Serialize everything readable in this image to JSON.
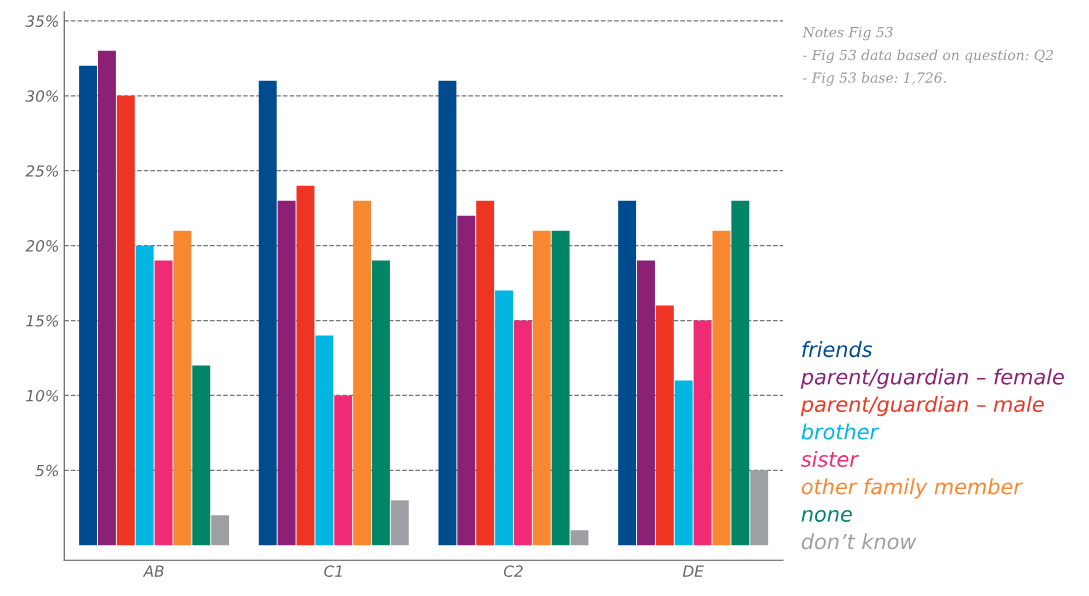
{
  "chart_data": {
    "type": "bar",
    "categories": [
      "AB",
      "C1",
      "C2",
      "DE"
    ],
    "series": [
      {
        "name": "friends",
        "color": "#004b8d",
        "values": [
          32,
          31,
          31,
          23
        ]
      },
      {
        "name": "parent/guardian – female",
        "color": "#8b2074",
        "values": [
          33,
          23,
          22,
          19
        ]
      },
      {
        "name": "parent/guardian – male",
        "color": "#ee3524",
        "values": [
          30,
          24,
          23,
          16
        ]
      },
      {
        "name": "brother",
        "color": "#00b5e2",
        "values": [
          20,
          14,
          17,
          11
        ]
      },
      {
        "name": "sister",
        "color": "#ee2b74",
        "values": [
          19,
          10,
          15,
          15
        ]
      },
      {
        "name": "other family member",
        "color": "#f7882f",
        "values": [
          21,
          23,
          21,
          21
        ]
      },
      {
        "name": "none",
        "color": "#008566",
        "values": [
          12,
          19,
          21,
          23
        ]
      },
      {
        "name": "don’t know",
        "color": "#9d9fa2",
        "values": [
          2,
          3,
          1,
          5
        ]
      }
    ],
    "ylim": [
      -1,
      35.6
    ],
    "yticks": [
      {
        "value": 5,
        "label": "5%"
      },
      {
        "value": 10,
        "label": "10%"
      },
      {
        "value": 15,
        "label": "15%"
      },
      {
        "value": 20,
        "label": "20%"
      },
      {
        "value": 25,
        "label": "25%"
      },
      {
        "value": 30,
        "label": "30%"
      },
      {
        "value": 35,
        "label": "35%"
      }
    ],
    "grid": "y",
    "legend": "right",
    "annotations": [
      "Notes Fig 53",
      "- Fig 53 data based on question: Q2",
      "- Fig 53 base: 1,726."
    ]
  }
}
